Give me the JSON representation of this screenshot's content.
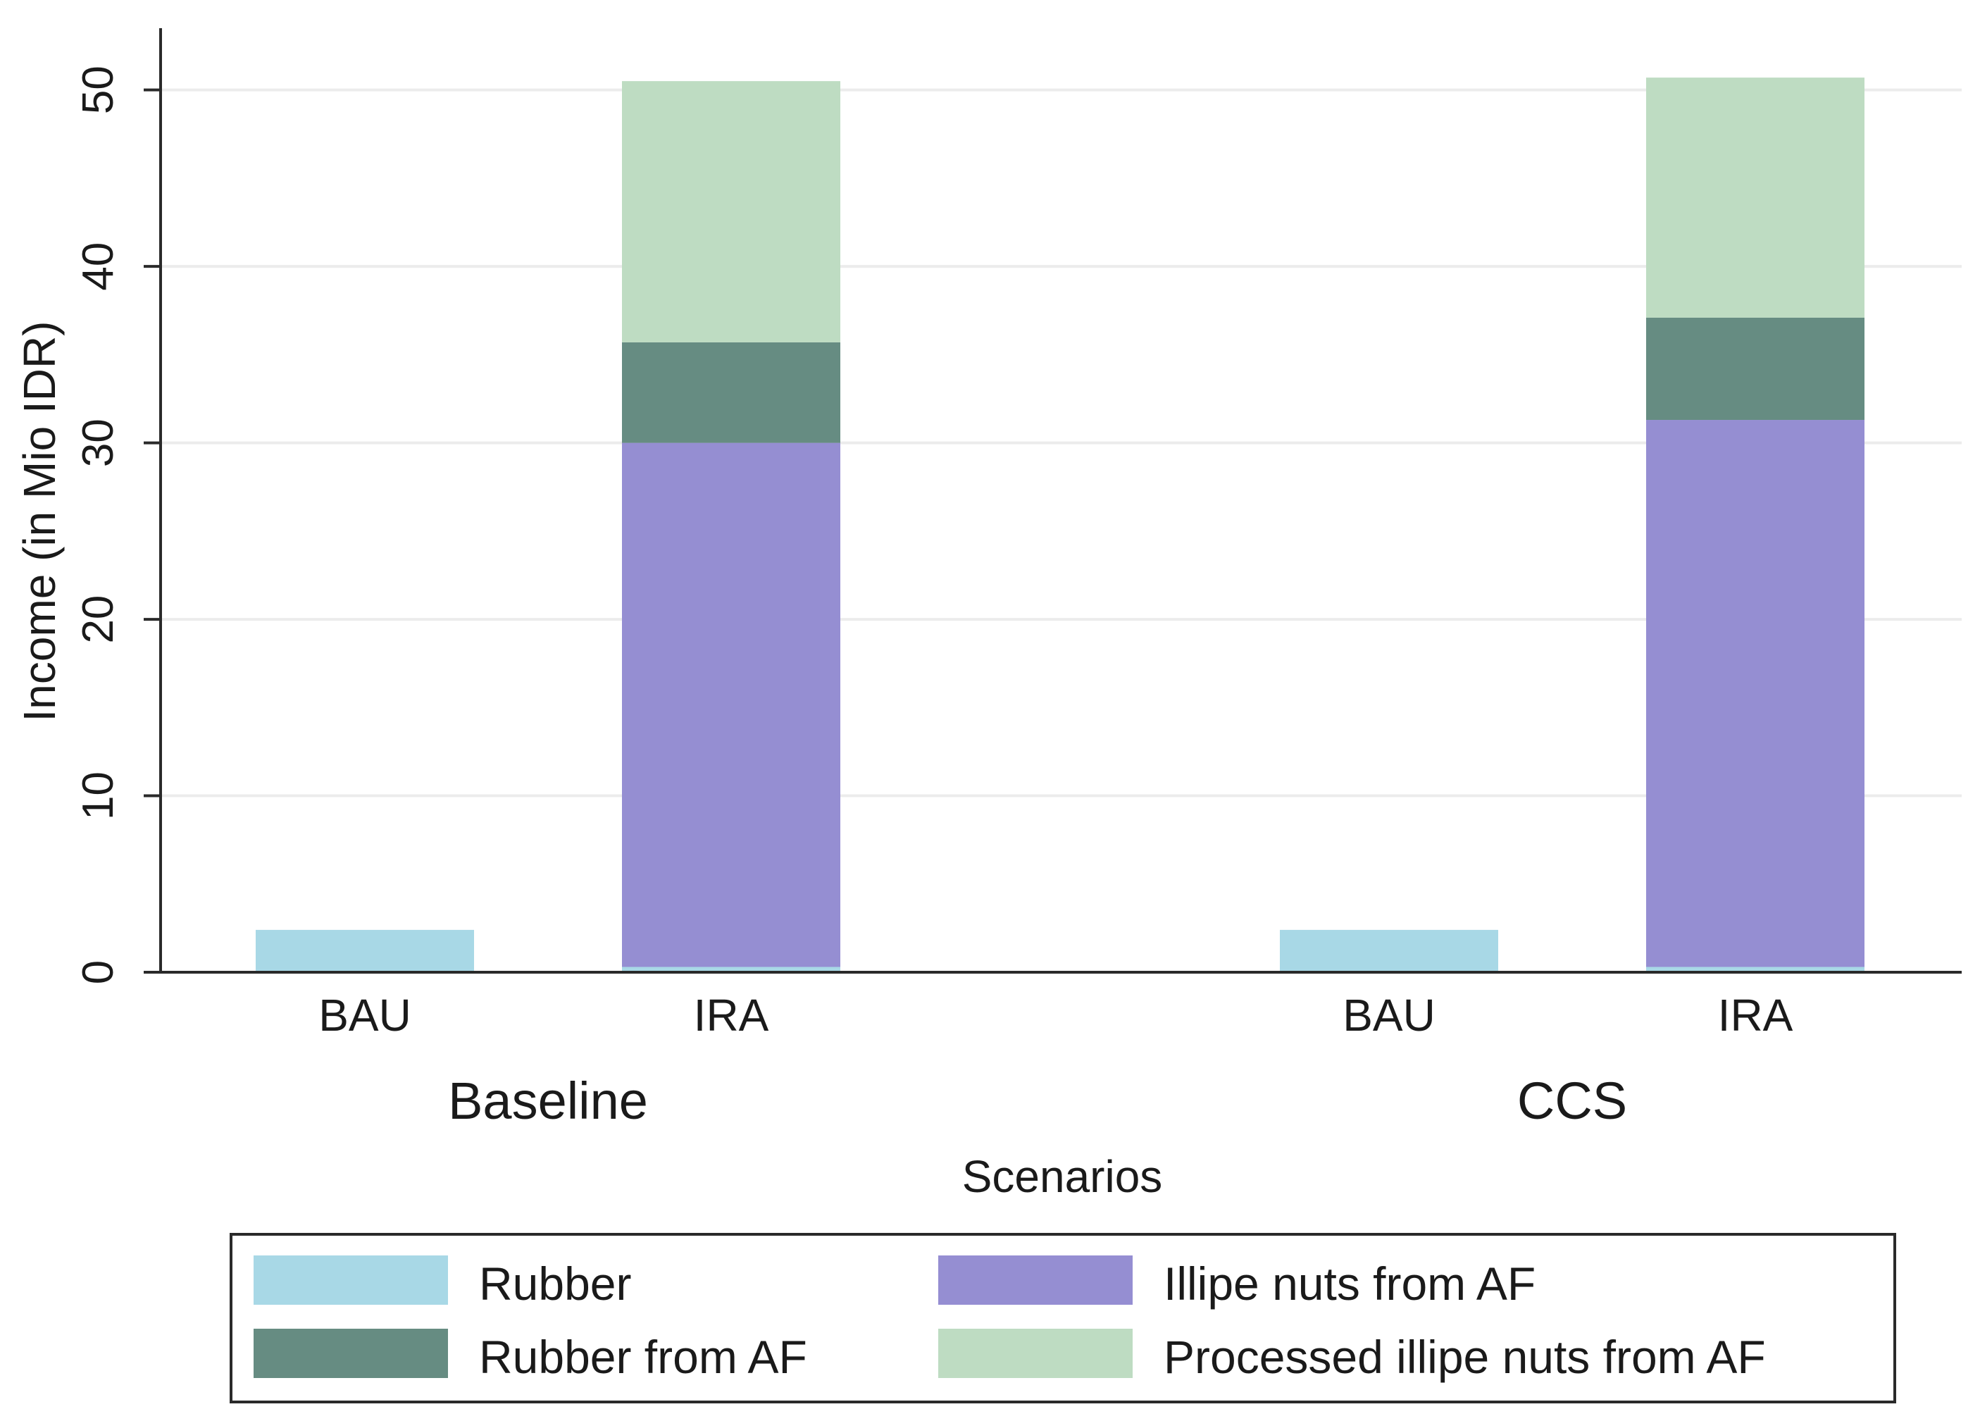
{
  "chart_data": {
    "type": "bar",
    "stacked": true,
    "title": "",
    "xlabel": "Scenarios",
    "ylabel": "Income (in Mio IDR)",
    "ylim": [
      0,
      53.5
    ],
    "yticks": [
      0,
      10,
      20,
      30,
      40,
      50
    ],
    "grid": true,
    "groups": [
      {
        "name": "Baseline",
        "categories": [
          "BAU",
          "IRA"
        ]
      },
      {
        "name": "CCS",
        "categories": [
          "BAU",
          "IRA"
        ]
      }
    ],
    "categories": [
      "Baseline BAU",
      "Baseline IRA",
      "CCS BAU",
      "CCS IRA"
    ],
    "series": [
      {
        "name": "Rubber",
        "color": "#a8d8e6",
        "values": [
          2.4,
          0.3,
          2.4,
          0.3
        ]
      },
      {
        "name": "Illipe nuts from AF",
        "color": "#958ed2",
        "values": [
          0,
          29.7,
          0,
          31.0
        ]
      },
      {
        "name": "Rubber from AF",
        "color": "#668c82",
        "values": [
          0,
          5.7,
          0,
          5.8
        ]
      },
      {
        "name": "Processed illipe nuts from AF",
        "color": "#bedcc2",
        "values": [
          0,
          14.8,
          0,
          13.6
        ]
      }
    ],
    "legend_order": [
      0,
      1,
      2,
      3
    ],
    "legend_position": "bottom"
  }
}
